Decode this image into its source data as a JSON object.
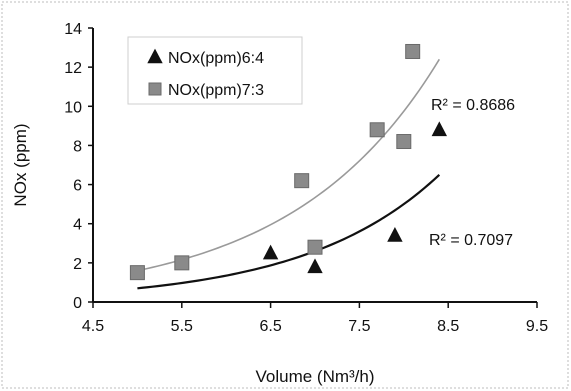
{
  "chart_data": {
    "type": "scatter",
    "xlabel": "Volume (Nm³/h)",
    "ylabel": "NOx (ppm)",
    "xlim": [
      4.5,
      9.5
    ],
    "ylim": [
      0,
      14
    ],
    "x_ticks": [
      "4.5",
      "5.5",
      "6.5",
      "7.5",
      "8.5",
      "9.5"
    ],
    "y_ticks": [
      "0",
      "2",
      "4",
      "6",
      "8",
      "10",
      "12",
      "14"
    ],
    "grid": false,
    "legend_position": "top-left",
    "series": [
      {
        "name": "NOx(ppm)6:4",
        "marker": "triangle",
        "color": "#111111",
        "trendline_color": "#111111",
        "points": [
          {
            "x": 6.5,
            "y": 2.5
          },
          {
            "x": 7.0,
            "y": 1.8
          },
          {
            "x": 7.9,
            "y": 3.4
          },
          {
            "x": 8.4,
            "y": 8.8
          }
        ],
        "trendline": {
          "type": "exponential",
          "x_from": 5.0,
          "x_to": 8.4,
          "y_at_start": 0.7,
          "y_at_end": 6.5
        },
        "r_squared_label": "R² = 0.7097"
      },
      {
        "name": "NOx(ppm)7:3",
        "marker": "square",
        "color": "#8a8a8a",
        "trendline_color": "#9a9a9a",
        "points": [
          {
            "x": 5.0,
            "y": 1.5
          },
          {
            "x": 5.5,
            "y": 2.0
          },
          {
            "x": 6.85,
            "y": 6.2
          },
          {
            "x": 7.0,
            "y": 2.8
          },
          {
            "x": 7.7,
            "y": 8.8
          },
          {
            "x": 8.0,
            "y": 8.2
          },
          {
            "x": 8.1,
            "y": 12.8
          }
        ],
        "trendline": {
          "type": "exponential",
          "x_from": 5.0,
          "x_to": 8.4,
          "y_at_start": 1.6,
          "y_at_end": 12.4
        },
        "r_squared_label": "R² = 0.8686"
      }
    ]
  }
}
